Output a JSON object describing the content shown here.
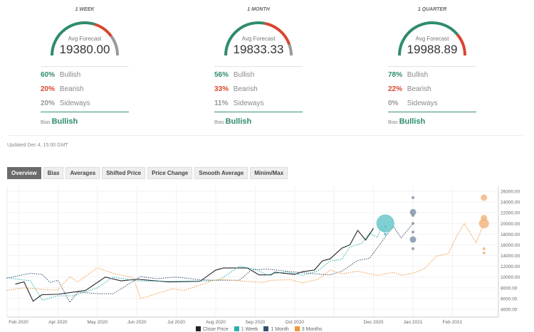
{
  "panels": [
    {
      "title": "1 WEEK",
      "avg_label": "Avg Forecast",
      "value": "19380.00",
      "bullish": 60,
      "bearish": 20,
      "sideways": 20,
      "rows": [
        {
          "pct": "60%",
          "label": "Bullish"
        },
        {
          "pct": "20%",
          "label": "Bearish"
        },
        {
          "pct": "20%",
          "label": "Sideways"
        }
      ],
      "bias_label": "Bias",
      "bias": "Bullish"
    },
    {
      "title": "1 MONTH",
      "avg_label": "Avg Forecast",
      "value": "19833.33",
      "bullish": 56,
      "bearish": 33,
      "sideways": 11,
      "rows": [
        {
          "pct": "56%",
          "label": "Bullish"
        },
        {
          "pct": "33%",
          "label": "Bearish"
        },
        {
          "pct": "11%",
          "label": "Sideways"
        }
      ],
      "bias_label": "Bias",
      "bias": "Bullish"
    },
    {
      "title": "1 QUARTER",
      "avg_label": "Avg Forecast",
      "value": "19988.89",
      "bullish": 78,
      "bearish": 22,
      "sideways": 0,
      "rows": [
        {
          "pct": "78%",
          "label": "Bullish"
        },
        {
          "pct": "22%",
          "label": "Bearish"
        },
        {
          "pct": "0%",
          "label": "Sideways"
        }
      ],
      "bias_label": "Bias",
      "bias": "Bullish"
    }
  ],
  "colors": {
    "bullish": "#2e8b6e",
    "bearish": "#d9452f",
    "sideways": "#999999"
  },
  "updated": "Updated Dec 4, 15:00 GMT",
  "tabs": [
    "Overview",
    "Bias",
    "Averages",
    "Shifted Price",
    "Price Change",
    "Smooth Average",
    "Minim/Max"
  ],
  "active_tab": 0,
  "chart_data": {
    "type": "line",
    "x_ticks": [
      "Feb 2020",
      "Apr 2020",
      "May 2020",
      "Jun 2020",
      "Jul 2020",
      "Aug 2020",
      "Sep 2020",
      "Oct 2020",
      "",
      "Dec 2020",
      "Jan 2021",
      "Feb 2021"
    ],
    "y_ticks": [
      "26000.00",
      "24000.00",
      "22000.00",
      "20000.00",
      "18000.00",
      "16000.00",
      "14000.00",
      "12000.00",
      "10000.00",
      "8000.00",
      "6000.00",
      "4000.00"
    ],
    "ylim": [
      4000,
      26000
    ],
    "series": [
      {
        "name": "Close Price",
        "color": "#222222",
        "dash": false,
        "points": [
          [
            -0.08,
            8700
          ],
          [
            0.14,
            9100
          ],
          [
            0.37,
            5500
          ],
          [
            0.59,
            6700
          ],
          [
            1.0,
            6800
          ],
          [
            1.7,
            7500
          ],
          [
            2.2,
            10000
          ],
          [
            2.6,
            9300
          ],
          [
            3.0,
            9600
          ],
          [
            3.8,
            9100
          ],
          [
            4.6,
            9200
          ],
          [
            5.0,
            11300
          ],
          [
            5.2,
            11700
          ],
          [
            5.8,
            11700
          ],
          [
            6.1,
            10400
          ],
          [
            6.4,
            10400
          ],
          [
            6.5,
            10900
          ],
          [
            7.0,
            10500
          ],
          [
            7.2,
            11000
          ],
          [
            7.5,
            11300
          ],
          [
            7.7,
            13000
          ],
          [
            7.9,
            13400
          ],
          [
            8.2,
            15400
          ],
          [
            8.4,
            16000
          ],
          [
            8.6,
            18700
          ],
          [
            8.8,
            16900
          ],
          [
            9.0,
            19100
          ]
        ]
      },
      {
        "name": "1 Week",
        "color": "#2bb0b0",
        "dash": true,
        "points": [
          [
            -0.3,
            9900
          ],
          [
            0.3,
            9300
          ],
          [
            0.6,
            5700
          ],
          [
            1.0,
            6500
          ],
          [
            1.4,
            6500
          ],
          [
            2.0,
            8000
          ],
          [
            2.4,
            10000
          ],
          [
            3.0,
            9300
          ],
          [
            3.8,
            9200
          ],
          [
            4.8,
            9300
          ],
          [
            5.1,
            9500
          ],
          [
            5.5,
            11500
          ],
          [
            5.6,
            12000
          ],
          [
            6.0,
            11500
          ],
          [
            6.3,
            10400
          ],
          [
            6.8,
            11000
          ],
          [
            7.2,
            10300
          ],
          [
            7.6,
            11200
          ],
          [
            7.9,
            13000
          ],
          [
            8.2,
            13300
          ],
          [
            8.4,
            15600
          ],
          [
            8.7,
            16300
          ],
          [
            8.9,
            18200
          ],
          [
            9.1,
            17400
          ],
          [
            9.2,
            19500
          ],
          [
            9.3,
            17800
          ]
        ]
      },
      {
        "name": "1 Month",
        "color": "#34506e",
        "dash": true,
        "points": [
          [
            -0.3,
            9800
          ],
          [
            0.3,
            10700
          ],
          [
            0.6,
            10500
          ],
          [
            0.8,
            9000
          ],
          [
            1.0,
            9400
          ],
          [
            1.3,
            5300
          ],
          [
            1.5,
            7200
          ],
          [
            2.0,
            6900
          ],
          [
            2.4,
            6900
          ],
          [
            3.1,
            10100
          ],
          [
            3.5,
            9700
          ],
          [
            4.0,
            10000
          ],
          [
            4.6,
            9500
          ],
          [
            5.0,
            9400
          ],
          [
            5.6,
            9400
          ],
          [
            5.9,
            11300
          ],
          [
            6.3,
            11500
          ],
          [
            6.9,
            11000
          ],
          [
            7.2,
            10800
          ],
          [
            7.9,
            10400
          ],
          [
            8.2,
            11100
          ],
          [
            8.6,
            13100
          ],
          [
            8.9,
            13500
          ],
          [
            9.3,
            17500
          ],
          [
            9.5,
            19500
          ],
          [
            9.7,
            17300
          ],
          [
            10.0,
            20000
          ]
        ]
      },
      {
        "name": "3 Months",
        "color": "#f0963c",
        "dash": true,
        "points": [
          [
            -0.3,
            7500
          ],
          [
            0.14,
            8000
          ],
          [
            0.8,
            7600
          ],
          [
            1.0,
            7600
          ],
          [
            1.3,
            10100
          ],
          [
            1.5,
            9100
          ],
          [
            2.0,
            11700
          ],
          [
            2.4,
            10700
          ],
          [
            2.9,
            9900
          ],
          [
            3.1,
            6000
          ],
          [
            3.9,
            7800
          ],
          [
            4.2,
            7500
          ],
          [
            4.9,
            9300
          ],
          [
            5.1,
            9600
          ],
          [
            5.6,
            9300
          ],
          [
            6.2,
            9000
          ],
          [
            6.4,
            9400
          ],
          [
            6.9,
            9500
          ],
          [
            7.2,
            8900
          ],
          [
            7.6,
            9600
          ],
          [
            7.9,
            11300
          ],
          [
            8.2,
            10600
          ],
          [
            8.6,
            11100
          ],
          [
            9.1,
            10300
          ],
          [
            9.5,
            10900
          ],
          [
            9.7,
            10300
          ],
          [
            10.0,
            10700
          ],
          [
            10.3,
            11600
          ],
          [
            10.6,
            13900
          ],
          [
            10.9,
            14400
          ],
          [
            11.1,
            17500
          ],
          [
            11.3,
            20000
          ],
          [
            11.6,
            16400
          ],
          [
            11.8,
            20000
          ]
        ]
      }
    ],
    "forecast_bubbles": [
      {
        "series": "1 Week",
        "color": "#5fc3c8",
        "x": 9.3,
        "points": [
          [
            20000,
            3
          ],
          [
            19400,
            1
          ],
          [
            18000,
            1
          ]
        ]
      },
      {
        "series": "1 Month",
        "color": "#7d8ea8",
        "x": 10.0,
        "points": [
          [
            24800,
            1
          ],
          [
            22100,
            2
          ],
          [
            21500,
            1
          ],
          [
            20000,
            1
          ],
          [
            18400,
            1
          ],
          [
            17000,
            2
          ],
          [
            15300,
            1
          ]
        ]
      },
      {
        "series": "3 Months",
        "color": "#f2b27a",
        "x": 11.8,
        "points": [
          [
            24800,
            2
          ],
          [
            21000,
            2
          ],
          [
            20000,
            3
          ],
          [
            15300,
            1
          ],
          [
            14500,
            1
          ]
        ]
      }
    ],
    "legend": [
      "Close Price",
      "1 Week",
      "1 Month",
      "3 Months"
    ],
    "legend_colors": [
      "#222222",
      "#2bb0b0",
      "#34506e",
      "#f0963c"
    ]
  }
}
